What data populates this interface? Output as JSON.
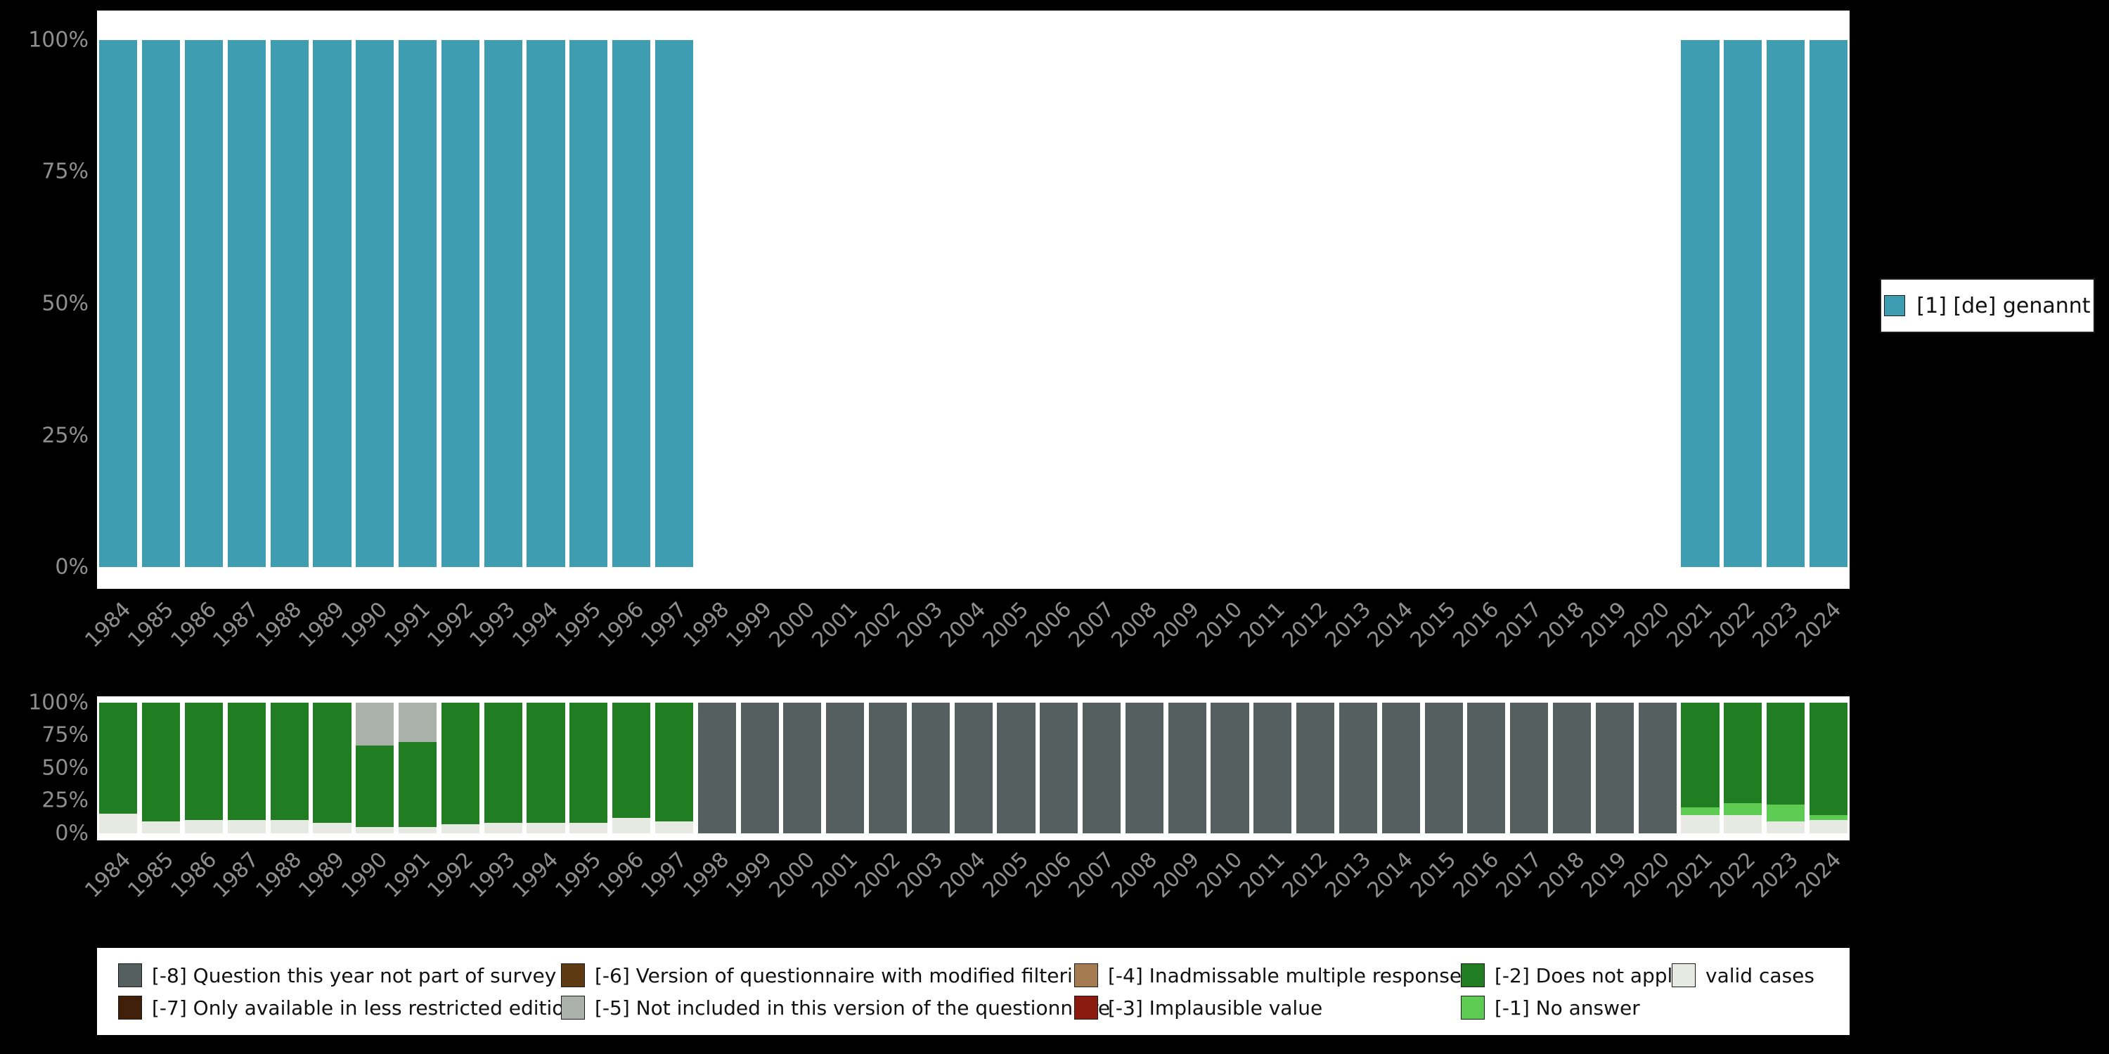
{
  "years": [
    "1984",
    "1985",
    "1986",
    "1987",
    "1988",
    "1989",
    "1990",
    "1991",
    "1992",
    "1993",
    "1994",
    "1995",
    "1996",
    "1997",
    "1998",
    "1999",
    "2000",
    "2001",
    "2002",
    "2003",
    "2004",
    "2005",
    "2006",
    "2007",
    "2008",
    "2009",
    "2010",
    "2011",
    "2012",
    "2013",
    "2014",
    "2015",
    "2016",
    "2017",
    "2018",
    "2019",
    "2020",
    "2021",
    "2022",
    "2023",
    "2024"
  ],
  "colors": {
    "genannt": "#3f9db2",
    "valid": "#e7eae3",
    "na": "#5ecb53",
    "dna": "#217d21",
    "imp": "#8b1a10",
    "inad": "#a57b51",
    "niv": "#aab1ab",
    "mod": "#5e3a12",
    "less": "#402008",
    "nps": "#565f5f"
  },
  "axis": {
    "yticks": [
      "100%",
      "75%",
      "50%",
      "25%",
      "0%"
    ]
  },
  "top_legend": {
    "label": "[1] [de] genannt"
  },
  "legend_bottom": {
    "items": [
      {
        "key": "nps",
        "label": "[-8] Question this year not part of survey"
      },
      {
        "key": "mod",
        "label": "[-6] Version of questionnaire with modified filtering"
      },
      {
        "key": "inad",
        "label": "[-4] Inadmissable multiple response"
      },
      {
        "key": "dna",
        "label": "[-2] Does not apply"
      },
      {
        "key": "valid",
        "label": "valid cases"
      },
      {
        "key": "less",
        "label": "[-7] Only available in less restricted edition"
      },
      {
        "key": "niv",
        "label": "[-5] Not included in this version of the questionnaire"
      },
      {
        "key": "imp",
        "label": "[-3] Implausible value"
      },
      {
        "key": "na",
        "label": "[-1] No answer"
      }
    ]
  },
  "chart_data": [
    {
      "type": "bar",
      "title": "",
      "xlabel": "",
      "ylabel": "",
      "ylim": [
        0,
        100
      ],
      "yticks": [
        "0%",
        "25%",
        "50%",
        "75%",
        "100%"
      ],
      "legend_position": "right",
      "categories": [
        "1984",
        "1985",
        "1986",
        "1987",
        "1988",
        "1989",
        "1990",
        "1991",
        "1992",
        "1993",
        "1994",
        "1995",
        "1996",
        "1997",
        "1998",
        "1999",
        "2000",
        "2001",
        "2002",
        "2003",
        "2004",
        "2005",
        "2006",
        "2007",
        "2008",
        "2009",
        "2010",
        "2011",
        "2012",
        "2013",
        "2014",
        "2015",
        "2016",
        "2017",
        "2018",
        "2019",
        "2020",
        "2021",
        "2022",
        "2023",
        "2024"
      ],
      "series": [
        {
          "name": "[1] [de] genannt",
          "color": "genannt",
          "values": [
            100,
            100,
            100,
            100,
            100,
            100,
            100,
            100,
            100,
            100,
            100,
            100,
            100,
            100,
            0,
            0,
            0,
            0,
            0,
            0,
            0,
            0,
            0,
            0,
            0,
            0,
            0,
            0,
            0,
            0,
            0,
            0,
            0,
            0,
            0,
            0,
            0,
            100,
            100,
            100,
            100
          ]
        }
      ]
    },
    {
      "type": "bar",
      "stacked": true,
      "title": "",
      "xlabel": "",
      "ylabel": "",
      "ylim": [
        0,
        100
      ],
      "yticks": [
        "0%",
        "25%",
        "50%",
        "75%",
        "100%"
      ],
      "legend_position": "bottom",
      "categories": [
        "1984",
        "1985",
        "1986",
        "1987",
        "1988",
        "1989",
        "1990",
        "1991",
        "1992",
        "1993",
        "1994",
        "1995",
        "1996",
        "1997",
        "1998",
        "1999",
        "2000",
        "2001",
        "2002",
        "2003",
        "2004",
        "2005",
        "2006",
        "2007",
        "2008",
        "2009",
        "2010",
        "2011",
        "2012",
        "2013",
        "2014",
        "2015",
        "2016",
        "2017",
        "2018",
        "2019",
        "2020",
        "2021",
        "2022",
        "2023",
        "2024"
      ],
      "series": [
        {
          "name": "valid cases",
          "color": "valid",
          "values": [
            15,
            9,
            10,
            10,
            10,
            8,
            5,
            5,
            7,
            8,
            8,
            8,
            12,
            9,
            0,
            0,
            0,
            0,
            0,
            0,
            0,
            0,
            0,
            0,
            0,
            0,
            0,
            0,
            0,
            0,
            0,
            0,
            0,
            0,
            0,
            0,
            0,
            14,
            14,
            9,
            10
          ]
        },
        {
          "name": "[-1] No answer",
          "color": "na",
          "values": [
            0,
            0,
            0,
            0,
            0,
            0,
            0,
            0,
            0,
            0,
            0,
            0,
            0,
            0,
            0,
            0,
            0,
            0,
            0,
            0,
            0,
            0,
            0,
            0,
            0,
            0,
            0,
            0,
            0,
            0,
            0,
            0,
            0,
            0,
            0,
            0,
            0,
            6,
            9,
            13,
            4
          ]
        },
        {
          "name": "[-2] Does not apply",
          "color": "dna",
          "values": [
            85,
            91,
            90,
            90,
            90,
            92,
            62,
            65,
            93,
            92,
            92,
            92,
            88,
            91,
            0,
            0,
            0,
            0,
            0,
            0,
            0,
            0,
            0,
            0,
            0,
            0,
            0,
            0,
            0,
            0,
            0,
            0,
            0,
            0,
            0,
            0,
            0,
            80,
            77,
            78,
            86
          ]
        },
        {
          "name": "[-5] Not included in this version of the questionnaire",
          "color": "niv",
          "values": [
            0,
            0,
            0,
            0,
            0,
            0,
            33,
            30,
            0,
            0,
            0,
            0,
            0,
            0,
            0,
            0,
            0,
            0,
            0,
            0,
            0,
            0,
            0,
            0,
            0,
            0,
            0,
            0,
            0,
            0,
            0,
            0,
            0,
            0,
            0,
            0,
            0,
            0,
            0,
            0,
            0
          ]
        },
        {
          "name": "[-8] Question this year not part of survey",
          "color": "nps",
          "values": [
            0,
            0,
            0,
            0,
            0,
            0,
            0,
            0,
            0,
            0,
            0,
            0,
            0,
            0,
            100,
            100,
            100,
            100,
            100,
            100,
            100,
            100,
            100,
            100,
            100,
            100,
            100,
            100,
            100,
            100,
            100,
            100,
            100,
            100,
            100,
            100,
            100,
            0,
            0,
            0,
            0
          ]
        }
      ]
    }
  ]
}
